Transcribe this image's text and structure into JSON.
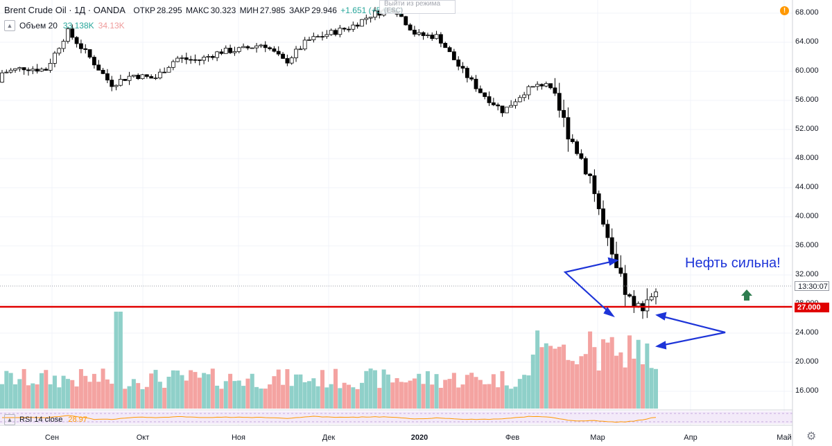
{
  "header": {
    "symbol": "Brent Crude Oil · 1Д · OANDA",
    "open_label": "ОТКР",
    "open": "28.295",
    "high_label": "МАКС",
    "high": "30.323",
    "low_label": "МИН",
    "low": "27.985",
    "close_label": "ЗАКР",
    "close": "29.946",
    "change": "+1.651 (+5.83%)"
  },
  "volume_legend": {
    "label": "Объем 20",
    "value1": "33.138K",
    "value2": "34.13K"
  },
  "rsi_legend": {
    "label": "RSI 14 close",
    "value": "28.97"
  },
  "exit_fullscreen": "Выйти из режима (ESC)",
  "annotation": "Нефть сильна!",
  "price_tags": {
    "time": "13:30:07",
    "level": "27.000"
  },
  "colors": {
    "up": "#26a69a",
    "down": "#000000",
    "level_line": "#e00000",
    "annotation": "#1d34d8",
    "vol_up": "#26a69a",
    "vol_down": "#ef5350",
    "rsi": "#ff9800"
  },
  "icons": [
    "warning-icon",
    "gear-icon",
    "chevron-up-icon",
    "up-arrow-icon"
  ],
  "chart_data": {
    "type": "candlestick",
    "title": "Brent Crude Oil · 1Д · OANDA",
    "y_axis_ticks": [
      "68.000",
      "64.000",
      "60.000",
      "56.000",
      "52.000",
      "48.000",
      "44.000",
      "40.000",
      "36.000",
      "32.000",
      "28.000",
      "24.000",
      "20.000",
      "16.000"
    ],
    "ylim": [
      13.5,
      69.5
    ],
    "x_axis_ticks": [
      "Сен",
      "Окт",
      "Ноя",
      "Дек",
      "2020",
      "Фев",
      "Мар",
      "Апр",
      "Май"
    ],
    "horizontal_level": 27.0,
    "grid": true,
    "candles_weekly_approx": [
      {
        "x": "Aug 26",
        "o": 58.5,
        "h": 60.5,
        "l": 57.8,
        "c": 59.8
      },
      {
        "x": "Sep 02",
        "o": 59.8,
        "h": 61.3,
        "l": 58.9,
        "c": 60.5
      },
      {
        "x": "Sep 09",
        "o": 60.5,
        "h": 62.5,
        "l": 59.5,
        "c": 60.2
      },
      {
        "x": "Sep 16",
        "o": 60.0,
        "h": 71.9,
        "l": 59.8,
        "c": 65.5
      },
      {
        "x": "Sep 23",
        "o": 65.0,
        "h": 66.5,
        "l": 61.5,
        "c": 62.0
      },
      {
        "x": "Sep 30",
        "o": 62.0,
        "h": 62.5,
        "l": 57.5,
        "c": 58.2
      },
      {
        "x": "Oct 07",
        "o": 58.2,
        "h": 60.5,
        "l": 57.5,
        "c": 59.5
      },
      {
        "x": "Oct 14",
        "o": 59.5,
        "h": 60.5,
        "l": 58.5,
        "c": 59.0
      },
      {
        "x": "Oct 21",
        "o": 59.0,
        "h": 62.2,
        "l": 58.5,
        "c": 61.8
      },
      {
        "x": "Oct 28",
        "o": 61.8,
        "h": 62.5,
        "l": 59.5,
        "c": 61.5
      },
      {
        "x": "Nov 04",
        "o": 61.5,
        "h": 63.5,
        "l": 61.0,
        "c": 62.7
      },
      {
        "x": "Nov 11",
        "o": 62.7,
        "h": 63.7,
        "l": 61.5,
        "c": 63.0
      },
      {
        "x": "Nov 18",
        "o": 63.0,
        "h": 64.5,
        "l": 61.8,
        "c": 63.8
      },
      {
        "x": "Nov 25",
        "o": 63.8,
        "h": 64.3,
        "l": 60.5,
        "c": 61.2
      },
      {
        "x": "Dec 02",
        "o": 61.2,
        "h": 64.5,
        "l": 60.0,
        "c": 64.2
      },
      {
        "x": "Dec 09",
        "o": 64.2,
        "h": 65.5,
        "l": 63.5,
        "c": 65.2
      },
      {
        "x": "Dec 16",
        "o": 65.2,
        "h": 66.5,
        "l": 65.0,
        "c": 66.1
      },
      {
        "x": "Dec 23",
        "o": 66.1,
        "h": 68.2,
        "l": 66.0,
        "c": 67.9
      },
      {
        "x": "Dec 30",
        "o": 67.9,
        "h": 71.8,
        "l": 66.0,
        "c": 68.7
      },
      {
        "x": "Jan 06",
        "o": 68.7,
        "h": 69.5,
        "l": 64.5,
        "c": 65.0
      },
      {
        "x": "Jan 13",
        "o": 65.0,
        "h": 65.8,
        "l": 64.0,
        "c": 64.8
      },
      {
        "x": "Jan 20",
        "o": 64.8,
        "h": 65.5,
        "l": 59.0,
        "c": 60.5
      },
      {
        "x": "Jan 27",
        "o": 60.5,
        "h": 60.8,
        "l": 56.5,
        "c": 57.0
      },
      {
        "x": "Feb 03",
        "o": 57.0,
        "h": 57.5,
        "l": 53.5,
        "c": 54.5
      },
      {
        "x": "Feb 10",
        "o": 54.5,
        "h": 57.5,
        "l": 53.5,
        "c": 57.3
      },
      {
        "x": "Feb 17",
        "o": 57.3,
        "h": 60.5,
        "l": 57.0,
        "c": 58.5
      },
      {
        "x": "Feb 24",
        "o": 58.5,
        "h": 59.5,
        "l": 50.0,
        "c": 51.5
      },
      {
        "x": "Mar 02",
        "o": 51.5,
        "h": 54.0,
        "l": 45.0,
        "c": 45.5
      },
      {
        "x": "Mar 09",
        "o": 45.5,
        "h": 45.9,
        "l": 31.0,
        "c": 33.8
      },
      {
        "x": "Mar 16",
        "o": 33.8,
        "h": 39.5,
        "l": 24.6,
        "c": 27.0
      },
      {
        "x": "Mar 20",
        "o": 28.3,
        "h": 30.3,
        "l": 28.0,
        "c": 29.9
      }
    ],
    "volume_series": {
      "name": "Объем 20",
      "last_values": [
        "33.138K",
        "34.13K"
      ]
    },
    "rsi_series": {
      "name": "RSI 14 close",
      "last_value": 28.97
    }
  }
}
